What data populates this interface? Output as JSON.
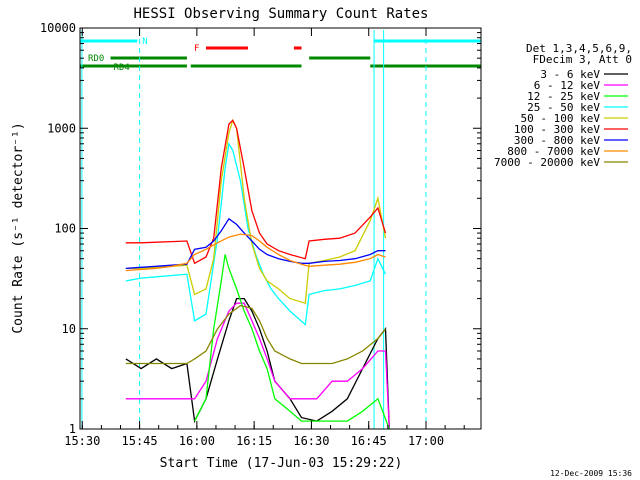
{
  "chart_data": {
    "type": "line",
    "title": "HESSI Observing Summary Count Rates",
    "xlabel": "Start Time (17-Jun-03 15:29:22)",
    "ylabel": "Count Rate (s⁻¹ detector⁻¹)",
    "y_scale": "log",
    "ylim": [
      1,
      10000
    ],
    "xlim_minutes": [
      0,
      105
    ],
    "x_ticks": [
      {
        "t": 0.6,
        "label": "15:30"
      },
      {
        "t": 15.6,
        "label": "15:45"
      },
      {
        "t": 30.6,
        "label": "16:00"
      },
      {
        "t": 45.6,
        "label": "16:15"
      },
      {
        "t": 60.6,
        "label": "16:30"
      },
      {
        "t": 75.6,
        "label": "16:45"
      },
      {
        "t": 90.6,
        "label": "17:00"
      }
    ],
    "y_ticks": [
      {
        "v": 1,
        "label": "1"
      },
      {
        "v": 10,
        "label": "10"
      },
      {
        "v": 100,
        "label": "100"
      },
      {
        "v": 1000,
        "label": "1000"
      },
      {
        "v": 10000,
        "label": "10000"
      }
    ],
    "legend": {
      "header": [
        "Det 1,3,4,5,6,9,",
        "FDecim 3, Att 0"
      ],
      "position": "right"
    },
    "series": [
      {
        "name": "3 - 6 keV",
        "color": "#000000",
        "points": [
          [
            12,
            5
          ],
          [
            16,
            4
          ],
          [
            20,
            5
          ],
          [
            24,
            4
          ],
          [
            28,
            4.5
          ],
          [
            30,
            1.2
          ],
          [
            33,
            2
          ],
          [
            36,
            5
          ],
          [
            39,
            12
          ],
          [
            41,
            20
          ],
          [
            43,
            20
          ],
          [
            45,
            15
          ],
          [
            47,
            10
          ],
          [
            49,
            6
          ],
          [
            51,
            3
          ],
          [
            55,
            2
          ],
          [
            58,
            1.3
          ],
          [
            62,
            1.2
          ],
          [
            66,
            1.5
          ],
          [
            70,
            2
          ],
          [
            74,
            4
          ],
          [
            78,
            8
          ],
          [
            80,
            10
          ],
          [
            81,
            1
          ]
        ]
      },
      {
        "name": "6 - 12 keV",
        "color": "#ff00ff",
        "points": [
          [
            12,
            2
          ],
          [
            16,
            2
          ],
          [
            20,
            2
          ],
          [
            24,
            2
          ],
          [
            28,
            2
          ],
          [
            30,
            2
          ],
          [
            33,
            3
          ],
          [
            36,
            8
          ],
          [
            39,
            15
          ],
          [
            41,
            18
          ],
          [
            43,
            18
          ],
          [
            45,
            12
          ],
          [
            47,
            8
          ],
          [
            49,
            5
          ],
          [
            51,
            3
          ],
          [
            55,
            2
          ],
          [
            58,
            2
          ],
          [
            62,
            2
          ],
          [
            66,
            3
          ],
          [
            70,
            3
          ],
          [
            74,
            4
          ],
          [
            78,
            6
          ],
          [
            80,
            6
          ],
          [
            81,
            1
          ]
        ]
      },
      {
        "name": "12 - 25 keV",
        "color": "#00ff00",
        "points": [
          [
            30,
            1.2
          ],
          [
            33,
            2
          ],
          [
            35,
            10
          ],
          [
            37,
            30
          ],
          [
            38,
            55
          ],
          [
            39,
            40
          ],
          [
            41,
            25
          ],
          [
            43,
            15
          ],
          [
            45,
            10
          ],
          [
            47,
            6
          ],
          [
            49,
            4
          ],
          [
            51,
            2
          ],
          [
            55,
            1.5
          ],
          [
            58,
            1.2
          ],
          [
            62,
            1.2
          ],
          [
            66,
            1.2
          ],
          [
            70,
            1.2
          ],
          [
            74,
            1.5
          ],
          [
            78,
            2
          ],
          [
            81,
            1
          ]
        ]
      },
      {
        "name": "25 - 50 keV",
        "color": "#00ffff",
        "points": [
          [
            12,
            30
          ],
          [
            16,
            32
          ],
          [
            20,
            33
          ],
          [
            24,
            34
          ],
          [
            28,
            35
          ],
          [
            30,
            12
          ],
          [
            33,
            14
          ],
          [
            36,
            80
          ],
          [
            38,
            400
          ],
          [
            39,
            700
          ],
          [
            40,
            600
          ],
          [
            42,
            300
          ],
          [
            44,
            100
          ],
          [
            46,
            55
          ],
          [
            48,
            35
          ],
          [
            50,
            25
          ],
          [
            52,
            20
          ],
          [
            55,
            15
          ],
          [
            59,
            11
          ],
          [
            60,
            22
          ],
          [
            64,
            24
          ],
          [
            68,
            25
          ],
          [
            72,
            27
          ],
          [
            76,
            30
          ],
          [
            78,
            50
          ],
          [
            80,
            35
          ]
        ]
      },
      {
        "name": "50 - 100 keV",
        "color": "#cccc00",
        "points": [
          [
            12,
            40
          ],
          [
            16,
            40
          ],
          [
            20,
            41
          ],
          [
            24,
            42
          ],
          [
            28,
            43
          ],
          [
            30,
            22
          ],
          [
            33,
            25
          ],
          [
            35,
            50
          ],
          [
            37,
            300
          ],
          [
            39,
            900
          ],
          [
            40,
            1200
          ],
          [
            41,
            1000
          ],
          [
            43,
            200
          ],
          [
            45,
            70
          ],
          [
            47,
            40
          ],
          [
            49,
            30
          ],
          [
            52,
            25
          ],
          [
            55,
            20
          ],
          [
            59,
            18
          ],
          [
            60,
            45
          ],
          [
            64,
            48
          ],
          [
            68,
            52
          ],
          [
            72,
            60
          ],
          [
            76,
            120
          ],
          [
            78,
            200
          ],
          [
            80,
            80
          ]
        ]
      },
      {
        "name": "100 - 300 keV",
        "color": "#ff0000",
        "points": [
          [
            12,
            72
          ],
          [
            16,
            72
          ],
          [
            20,
            73
          ],
          [
            24,
            74
          ],
          [
            28,
            75
          ],
          [
            30,
            45
          ],
          [
            33,
            52
          ],
          [
            35,
            80
          ],
          [
            37,
            400
          ],
          [
            39,
            1100
          ],
          [
            40,
            1200
          ],
          [
            41,
            1000
          ],
          [
            43,
            400
          ],
          [
            45,
            150
          ],
          [
            47,
            90
          ],
          [
            49,
            70
          ],
          [
            52,
            60
          ],
          [
            55,
            55
          ],
          [
            59,
            50
          ],
          [
            60,
            75
          ],
          [
            64,
            78
          ],
          [
            68,
            80
          ],
          [
            72,
            90
          ],
          [
            76,
            130
          ],
          [
            78,
            160
          ],
          [
            80,
            90
          ]
        ]
      },
      {
        "name": "300 - 800 keV",
        "color": "#0000ff",
        "points": [
          [
            12,
            40
          ],
          [
            16,
            41
          ],
          [
            20,
            42
          ],
          [
            24,
            43
          ],
          [
            28,
            44
          ],
          [
            30,
            62
          ],
          [
            33,
            65
          ],
          [
            35,
            75
          ],
          [
            37,
            95
          ],
          [
            39,
            125
          ],
          [
            41,
            110
          ],
          [
            43,
            90
          ],
          [
            45,
            75
          ],
          [
            47,
            62
          ],
          [
            49,
            55
          ],
          [
            52,
            50
          ],
          [
            55,
            47
          ],
          [
            58,
            45
          ],
          [
            60,
            45
          ],
          [
            64,
            47
          ],
          [
            68,
            48
          ],
          [
            72,
            50
          ],
          [
            76,
            55
          ],
          [
            78,
            60
          ],
          [
            80,
            60
          ]
        ]
      },
      {
        "name": "800 - 7000 keV",
        "color": "#ff8800",
        "points": [
          [
            12,
            38
          ],
          [
            16,
            39
          ],
          [
            20,
            40
          ],
          [
            24,
            42
          ],
          [
            28,
            45
          ],
          [
            30,
            55
          ],
          [
            33,
            62
          ],
          [
            36,
            72
          ],
          [
            39,
            82
          ],
          [
            42,
            88
          ],
          [
            45,
            85
          ],
          [
            47,
            75
          ],
          [
            49,
            65
          ],
          [
            52,
            55
          ],
          [
            55,
            48
          ],
          [
            58,
            44
          ],
          [
            60,
            42
          ],
          [
            64,
            43
          ],
          [
            68,
            44
          ],
          [
            72,
            46
          ],
          [
            76,
            50
          ],
          [
            78,
            55
          ],
          [
            80,
            52
          ]
        ]
      },
      {
        "name": "7000 - 20000 keV",
        "color": "#888800",
        "points": [
          [
            12,
            4.5
          ],
          [
            16,
            4.5
          ],
          [
            20,
            4.5
          ],
          [
            24,
            4.5
          ],
          [
            28,
            4.5
          ],
          [
            30,
            5
          ],
          [
            33,
            6
          ],
          [
            36,
            10
          ],
          [
            39,
            14
          ],
          [
            42,
            17
          ],
          [
            45,
            16
          ],
          [
            47,
            12
          ],
          [
            49,
            8
          ],
          [
            51,
            6
          ],
          [
            55,
            5
          ],
          [
            58,
            4.5
          ],
          [
            62,
            4.5
          ],
          [
            66,
            4.5
          ],
          [
            70,
            5
          ],
          [
            74,
            6
          ],
          [
            78,
            8
          ],
          [
            80,
            10
          ]
        ]
      }
    ],
    "state_bars": [
      {
        "label": "N",
        "color": "#00ffff",
        "segments": [
          [
            0,
            15
          ],
          [
            77,
            105
          ]
        ]
      },
      {
        "label": "F",
        "color": "#ff0000",
        "segments": [
          [
            33,
            44
          ],
          [
            56,
            58
          ]
        ]
      },
      {
        "label": "RD0",
        "color": "#008800",
        "segments": [
          [
            8,
            28
          ],
          [
            60,
            76
          ]
        ]
      },
      {
        "label": "RD4",
        "color": "#008800",
        "segments": [
          [
            0,
            28
          ],
          [
            29,
            58
          ],
          [
            76,
            105
          ]
        ]
      }
    ],
    "vlines_cyan_dashed": [
      15.6,
      90.6
    ],
    "vlines_cyan_solid": [
      0.5,
      77,
      79.5
    ]
  },
  "timestamp": "12-Dec-2009 15:36"
}
